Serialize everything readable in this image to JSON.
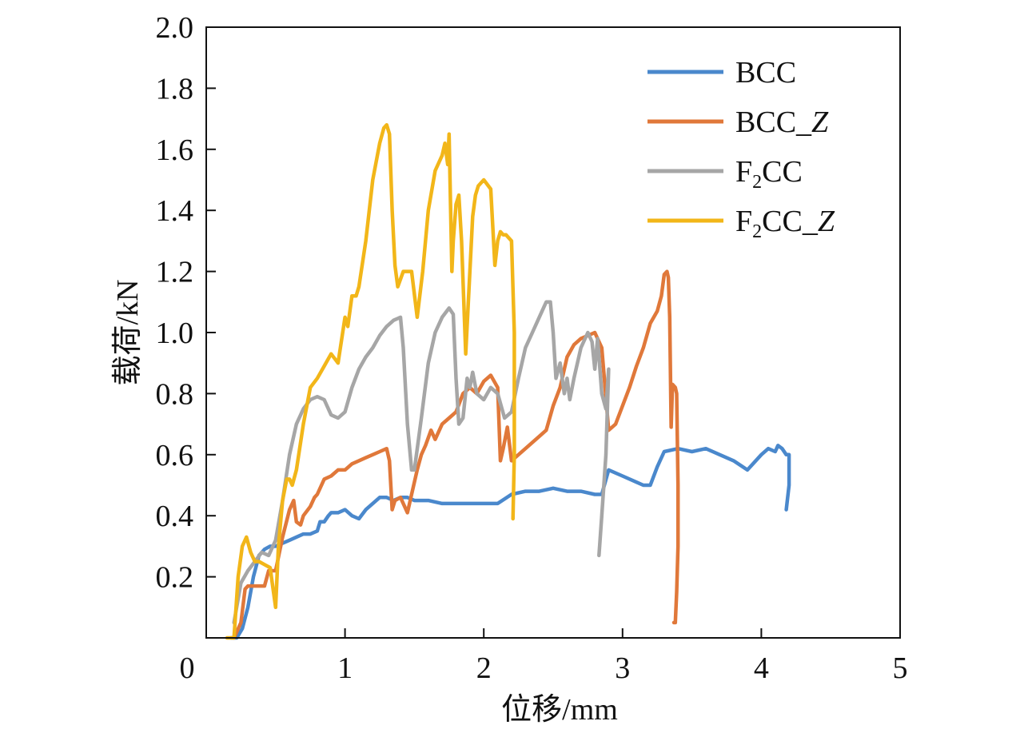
{
  "chart_data": {
    "type": "line",
    "title": "",
    "xlabel": "位移/mm",
    "ylabel": "载荷/kN",
    "xlim": [
      0,
      5
    ],
    "ylim": [
      0,
      2.0
    ],
    "xticks": [
      0,
      1,
      2,
      3,
      4,
      5
    ],
    "xtick_labels": [
      "0",
      "1",
      "2",
      "3",
      "4",
      "5"
    ],
    "yticks": [
      0.2,
      0.4,
      0.6,
      0.8,
      1.0,
      1.2,
      1.4,
      1.6,
      1.8,
      2.0
    ],
    "ytick_labels": [
      "0.2",
      "0.4",
      "0.6",
      "0.8",
      "1.0",
      "1.2",
      "1.4",
      "1.6",
      "1.8",
      "2.0"
    ],
    "grid": false,
    "legend_position": "top-right",
    "series": [
      {
        "name": "BCC",
        "legend_parts": [
          {
            "t": "BCC",
            "sub": false
          }
        ],
        "color": "#4a88cc",
        "x": [
          0.18,
          0.22,
          0.26,
          0.3,
          0.34,
          0.38,
          0.42,
          0.46,
          0.5,
          0.55,
          0.6,
          0.65,
          0.7,
          0.75,
          0.8,
          0.82,
          0.85,
          0.88,
          0.9,
          0.95,
          1.0,
          1.05,
          1.1,
          1.15,
          1.2,
          1.25,
          1.3,
          1.35,
          1.4,
          1.45,
          1.5,
          1.6,
          1.7,
          1.8,
          1.9,
          2.0,
          2.1,
          2.2,
          2.3,
          2.4,
          2.5,
          2.6,
          2.7,
          2.8,
          2.85,
          2.9,
          3.0,
          3.1,
          3.15,
          3.2,
          3.25,
          3.3,
          3.4,
          3.5,
          3.6,
          3.7,
          3.8,
          3.9,
          4.0,
          4.05,
          4.1,
          4.12,
          4.15,
          4.18,
          4.2,
          4.2,
          4.18
        ],
        "y": [
          0.0,
          0.0,
          0.03,
          0.1,
          0.2,
          0.27,
          0.29,
          0.3,
          0.3,
          0.31,
          0.32,
          0.33,
          0.34,
          0.34,
          0.35,
          0.38,
          0.38,
          0.4,
          0.41,
          0.41,
          0.42,
          0.4,
          0.39,
          0.42,
          0.44,
          0.46,
          0.46,
          0.45,
          0.46,
          0.46,
          0.45,
          0.45,
          0.44,
          0.44,
          0.44,
          0.44,
          0.44,
          0.47,
          0.48,
          0.48,
          0.49,
          0.48,
          0.48,
          0.47,
          0.47,
          0.55,
          0.53,
          0.51,
          0.5,
          0.5,
          0.56,
          0.61,
          0.62,
          0.61,
          0.62,
          0.6,
          0.58,
          0.55,
          0.6,
          0.62,
          0.61,
          0.63,
          0.62,
          0.6,
          0.6,
          0.5,
          0.42
        ]
      },
      {
        "name": "BCC_Z",
        "legend_parts": [
          {
            "t": "BCC_",
            "sub": false
          },
          {
            "t": "Z",
            "italic": true
          }
        ],
        "color": "#e0783a",
        "x": [
          0.2,
          0.25,
          0.28,
          0.3,
          0.35,
          0.42,
          0.45,
          0.5,
          0.55,
          0.6,
          0.63,
          0.65,
          0.68,
          0.7,
          0.75,
          0.78,
          0.8,
          0.85,
          0.9,
          0.95,
          1.0,
          1.05,
          1.1,
          1.15,
          1.2,
          1.25,
          1.3,
          1.32,
          1.34,
          1.36,
          1.4,
          1.45,
          1.48,
          1.52,
          1.55,
          1.58,
          1.62,
          1.65,
          1.7,
          1.75,
          1.8,
          1.85,
          1.9,
          1.95,
          2.0,
          2.05,
          2.1,
          2.12,
          2.14,
          2.17,
          2.2,
          2.3,
          2.4,
          2.45,
          2.5,
          2.55,
          2.6,
          2.65,
          2.7,
          2.75,
          2.8,
          2.85,
          2.9,
          2.95,
          3.0,
          3.05,
          3.1,
          3.15,
          3.2,
          3.25,
          3.28,
          3.3,
          3.32,
          3.33,
          3.34,
          3.35,
          3.36,
          3.38,
          3.39,
          3.4,
          3.4,
          3.39,
          3.38,
          3.37
        ],
        "y": [
          0.0,
          0.05,
          0.16,
          0.17,
          0.17,
          0.17,
          0.22,
          0.22,
          0.33,
          0.42,
          0.45,
          0.38,
          0.37,
          0.4,
          0.43,
          0.46,
          0.47,
          0.52,
          0.53,
          0.55,
          0.55,
          0.57,
          0.58,
          0.59,
          0.6,
          0.61,
          0.62,
          0.58,
          0.42,
          0.45,
          0.46,
          0.41,
          0.47,
          0.55,
          0.6,
          0.63,
          0.68,
          0.65,
          0.7,
          0.72,
          0.74,
          0.8,
          0.82,
          0.8,
          0.84,
          0.86,
          0.82,
          0.58,
          0.62,
          0.69,
          0.58,
          0.62,
          0.66,
          0.68,
          0.76,
          0.82,
          0.92,
          0.96,
          0.98,
          0.99,
          1.0,
          0.95,
          0.68,
          0.7,
          0.76,
          0.82,
          0.89,
          0.95,
          1.03,
          1.07,
          1.12,
          1.19,
          1.2,
          1.18,
          1.05,
          0.69,
          0.83,
          0.82,
          0.8,
          0.5,
          0.3,
          0.15,
          0.05,
          0.05
        ]
      },
      {
        "name": "F2CC",
        "legend_parts": [
          {
            "t": "F",
            "sub": false
          },
          {
            "t": "2",
            "sub": true
          },
          {
            "t": "CC",
            "sub": false
          }
        ],
        "color": "#a6a6a6",
        "x": [
          0.2,
          0.25,
          0.3,
          0.35,
          0.4,
          0.45,
          0.5,
          0.55,
          0.6,
          0.65,
          0.7,
          0.75,
          0.8,
          0.85,
          0.9,
          0.95,
          1.0,
          1.05,
          1.1,
          1.15,
          1.2,
          1.25,
          1.3,
          1.35,
          1.4,
          1.42,
          1.45,
          1.48,
          1.5,
          1.55,
          1.6,
          1.65,
          1.7,
          1.75,
          1.78,
          1.8,
          1.82,
          1.85,
          1.88,
          1.9,
          1.92,
          1.95,
          2.0,
          2.05,
          2.1,
          2.15,
          2.2,
          2.25,
          2.3,
          2.35,
          2.4,
          2.45,
          2.48,
          2.5,
          2.52,
          2.55,
          2.58,
          2.6,
          2.62,
          2.65,
          2.7,
          2.75,
          2.78,
          2.8,
          2.82,
          2.85,
          2.88,
          2.9,
          2.88,
          2.85,
          2.83
        ],
        "y": [
          0.05,
          0.18,
          0.22,
          0.25,
          0.28,
          0.27,
          0.32,
          0.45,
          0.6,
          0.7,
          0.75,
          0.78,
          0.79,
          0.78,
          0.73,
          0.72,
          0.74,
          0.82,
          0.88,
          0.92,
          0.95,
          0.99,
          1.02,
          1.04,
          1.05,
          0.95,
          0.7,
          0.55,
          0.55,
          0.72,
          0.9,
          1.0,
          1.05,
          1.08,
          1.06,
          0.85,
          0.7,
          0.72,
          0.85,
          0.82,
          0.87,
          0.8,
          0.78,
          0.82,
          0.8,
          0.72,
          0.74,
          0.85,
          0.95,
          1.0,
          1.05,
          1.1,
          1.1,
          1.0,
          0.85,
          0.9,
          0.8,
          0.85,
          0.78,
          0.85,
          0.95,
          1.0,
          0.97,
          0.88,
          0.98,
          0.8,
          0.75,
          0.88,
          0.6,
          0.4,
          0.27
        ]
      },
      {
        "name": "F2CC_Z",
        "legend_parts": [
          {
            "t": "F",
            "sub": false
          },
          {
            "t": "2",
            "sub": true
          },
          {
            "t": "CC_",
            "sub": false
          },
          {
            "t": "Z",
            "italic": true
          }
        ],
        "color": "#f2b619",
        "x": [
          0.15,
          0.2,
          0.23,
          0.26,
          0.29,
          0.32,
          0.35,
          0.38,
          0.42,
          0.46,
          0.5,
          0.52,
          0.55,
          0.58,
          0.6,
          0.62,
          0.65,
          0.7,
          0.75,
          0.8,
          0.85,
          0.9,
          0.95,
          1.0,
          1.02,
          1.05,
          1.08,
          1.1,
          1.15,
          1.2,
          1.25,
          1.28,
          1.3,
          1.32,
          1.34,
          1.36,
          1.38,
          1.42,
          1.48,
          1.52,
          1.56,
          1.6,
          1.65,
          1.7,
          1.72,
          1.74,
          1.75,
          1.77,
          1.78,
          1.8,
          1.82,
          1.84,
          1.87,
          1.9,
          1.92,
          1.94,
          1.96,
          2.0,
          2.05,
          2.08,
          2.1,
          2.12,
          2.14,
          2.16,
          2.2,
          2.22,
          2.22,
          2.21
        ],
        "y": [
          0.0,
          0.0,
          0.2,
          0.3,
          0.33,
          0.28,
          0.25,
          0.25,
          0.24,
          0.23,
          0.1,
          0.3,
          0.45,
          0.52,
          0.52,
          0.5,
          0.55,
          0.7,
          0.82,
          0.85,
          0.89,
          0.93,
          0.9,
          1.05,
          1.02,
          1.12,
          1.12,
          1.15,
          1.3,
          1.5,
          1.62,
          1.67,
          1.68,
          1.65,
          1.4,
          1.22,
          1.15,
          1.2,
          1.2,
          1.05,
          1.2,
          1.4,
          1.53,
          1.58,
          1.62,
          1.55,
          1.65,
          1.2,
          1.3,
          1.42,
          1.45,
          1.3,
          0.93,
          1.2,
          1.38,
          1.45,
          1.48,
          1.5,
          1.47,
          1.22,
          1.3,
          1.33,
          1.32,
          1.32,
          1.3,
          1.0,
          0.6,
          0.39
        ]
      }
    ]
  }
}
